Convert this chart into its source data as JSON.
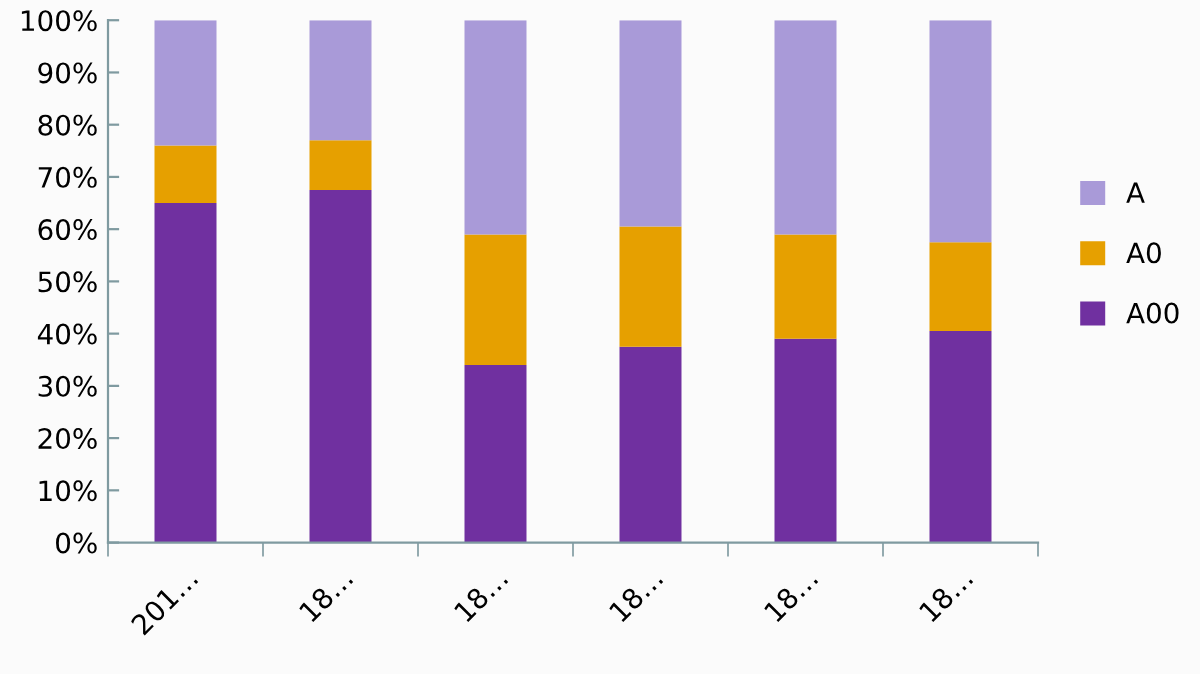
{
  "chart_data": {
    "type": "bar",
    "stacked": true,
    "categories": [
      "201…",
      "18…",
      "18…",
      "18…",
      "18…",
      "18…"
    ],
    "series": [
      {
        "name": "A00",
        "color": "#7030a0",
        "values": [
          65,
          67.5,
          34,
          37.5,
          39,
          40.5
        ]
      },
      {
        "name": "A0",
        "color": "#e6a000",
        "values": [
          11,
          9.5,
          25,
          23,
          20,
          17
        ]
      },
      {
        "name": "A",
        "color": "#a99ad8",
        "values": [
          24,
          23,
          41,
          39.5,
          41,
          42.5
        ]
      }
    ],
    "ylim": [
      0,
      100
    ],
    "yticks": [
      {
        "value": 0,
        "label": "0%"
      },
      {
        "value": 10,
        "label": "10%"
      },
      {
        "value": 20,
        "label": "20%"
      },
      {
        "value": 30,
        "label": "30%"
      },
      {
        "value": 40,
        "label": "40%"
      },
      {
        "value": 50,
        "label": "50%"
      },
      {
        "value": 60,
        "label": "60%"
      },
      {
        "value": 70,
        "label": "70%"
      },
      {
        "value": 80,
        "label": "80%"
      },
      {
        "value": 90,
        "label": "90%"
      },
      {
        "value": 100,
        "label": "100%"
      }
    ],
    "grid": false,
    "legend": "right"
  }
}
